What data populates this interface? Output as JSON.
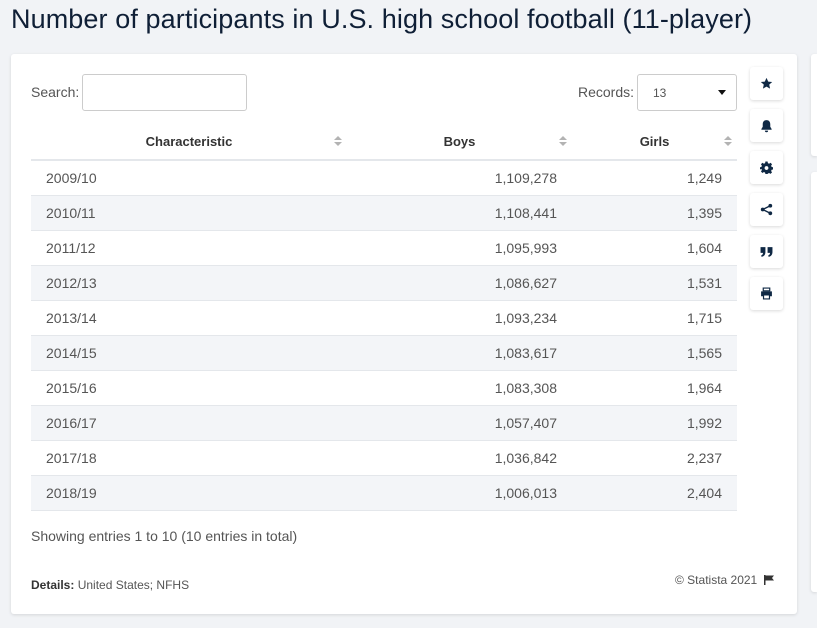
{
  "title": "Number of participants in U.S. high school football (11-player)",
  "search": {
    "label": "Search:",
    "value": ""
  },
  "records": {
    "label": "Records:",
    "selected": "13"
  },
  "table": {
    "headers": [
      "Characteristic",
      "Boys",
      "Girls"
    ],
    "rows": [
      [
        "2009/10",
        "1,109,278",
        "1,249"
      ],
      [
        "2010/11",
        "1,108,441",
        "1,395"
      ],
      [
        "2011/12",
        "1,095,993",
        "1,604"
      ],
      [
        "2012/13",
        "1,086,627",
        "1,531"
      ],
      [
        "2013/14",
        "1,093,234",
        "1,715"
      ],
      [
        "2014/15",
        "1,083,617",
        "1,565"
      ],
      [
        "2015/16",
        "1,083,308",
        "1,964"
      ],
      [
        "2016/17",
        "1,057,407",
        "1,992"
      ],
      [
        "2017/18",
        "1,036,842",
        "2,237"
      ],
      [
        "2018/19",
        "1,006,013",
        "2,404"
      ]
    ]
  },
  "footer": {
    "showing": "Showing entries 1 to 10 (10 entries in total)",
    "details_label": "Details:",
    "details_value": "United States; NFHS",
    "copyright": "© Statista 2021"
  },
  "tools": [
    "star-icon",
    "bell-icon",
    "gear-icon",
    "share-icon",
    "quote-icon",
    "print-icon"
  ],
  "colors": {
    "title": "#0f1f36",
    "icon": "#0f2844",
    "row_alt": "#f3f5f8"
  }
}
